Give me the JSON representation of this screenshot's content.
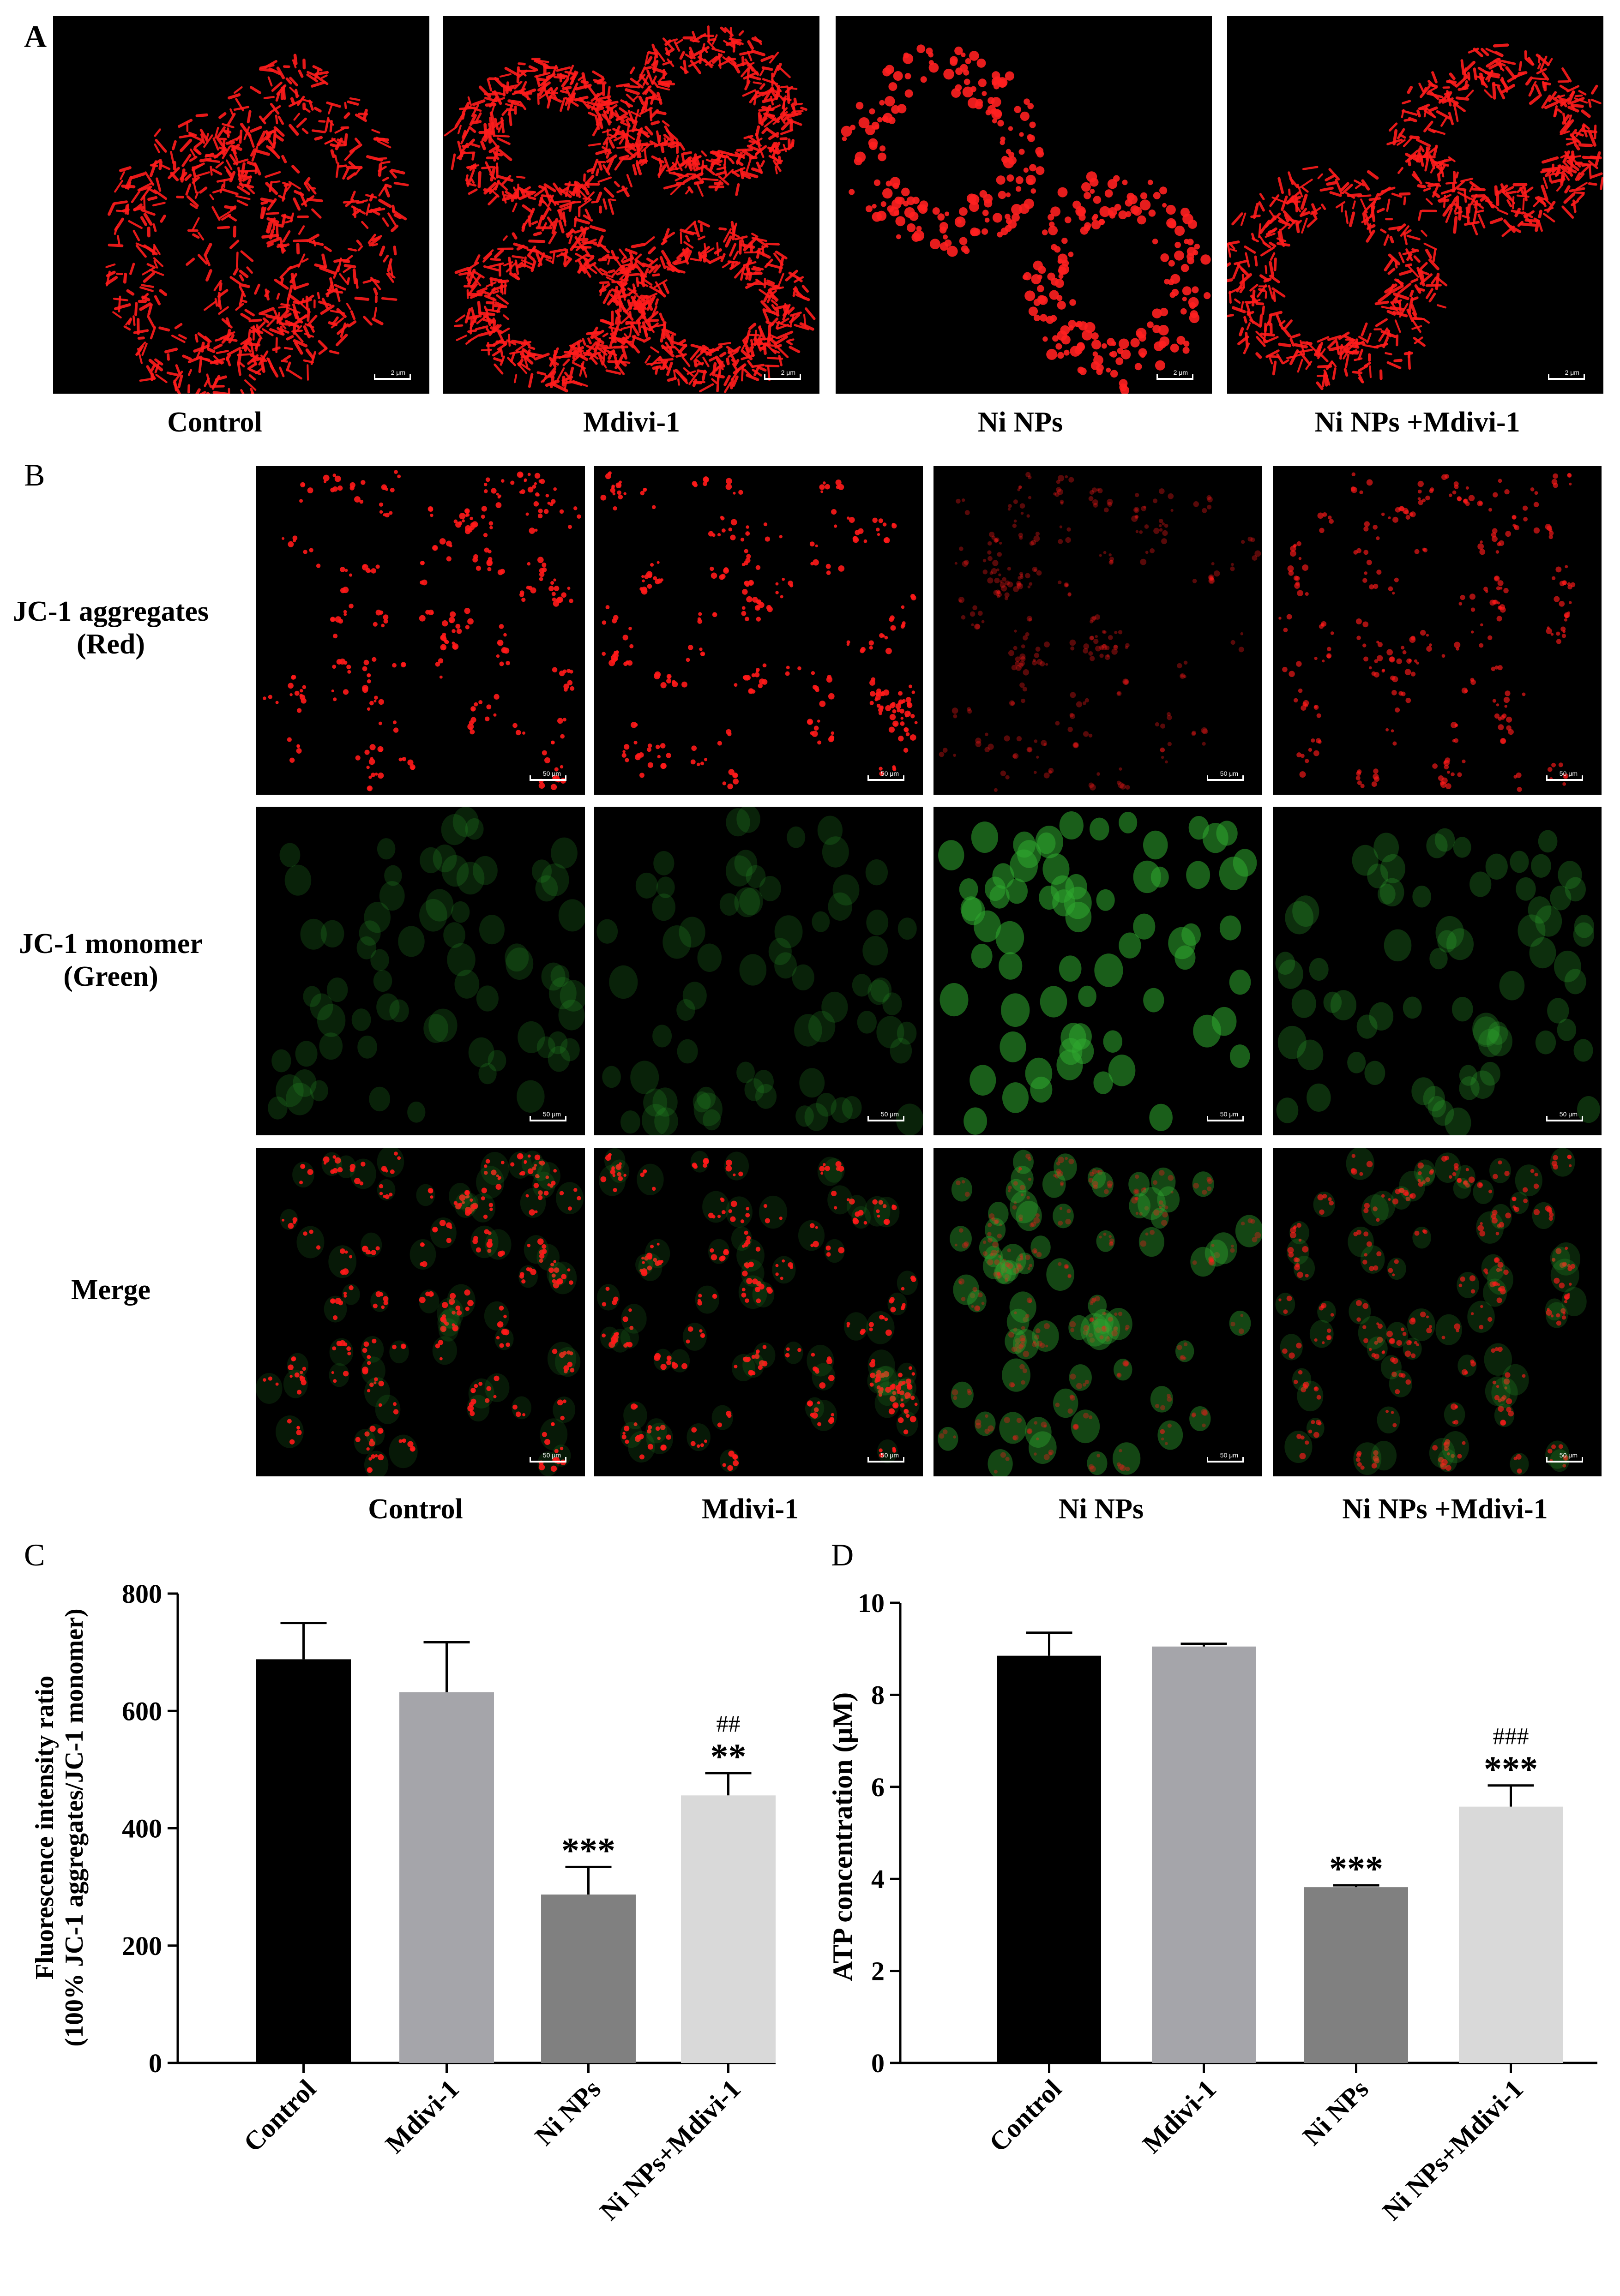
{
  "panel_labels": {
    "a": "A",
    "b": "B",
    "c": "C",
    "d": "D"
  },
  "groups": [
    "Control",
    "Mdivi-1",
    "Ni NPs",
    "Ni NPs +Mdivi-1"
  ],
  "panel_a": {
    "scale_bar": "2 μm",
    "images": [
      {
        "group": "Control",
        "fluorescence": "red",
        "cell_count": 2,
        "pattern": "filamentous"
      },
      {
        "group": "Mdivi-1",
        "fluorescence": "red",
        "cell_count": 4,
        "pattern": "elongated network"
      },
      {
        "group": "Ni NPs",
        "fluorescence": "red",
        "cell_count": 2,
        "pattern": "fragmented punctate"
      },
      {
        "group": "Ni NPs +Mdivi-1",
        "fluorescence": "red",
        "cell_count": 2,
        "pattern": "filamentous"
      }
    ]
  },
  "panel_b": {
    "scale_bar": "50 μm",
    "rows": [
      {
        "label_line1": "JC-1 aggregates",
        "label_line2": "(Red)",
        "channel": "red"
      },
      {
        "label_line1": "JC-1 monomer",
        "label_line2": "(Green)",
        "channel": "green"
      },
      {
        "label_line1": "Merge",
        "label_line2": "",
        "channel": "merge"
      }
    ],
    "red_intensity": [
      0.9,
      0.9,
      0.35,
      0.65
    ],
    "green_intensity": [
      0.25,
      0.25,
      0.7,
      0.35
    ],
    "colors": {
      "red": "#ff1a1a",
      "green": "#2fa82f"
    }
  },
  "chart_data": [
    {
      "type": "bar",
      "panel": "C",
      "categories": [
        "Control",
        "Mdivi-1",
        "Ni NPs",
        "Ni NPs+Mdivi-1"
      ],
      "values": [
        688,
        632,
        287,
        456
      ],
      "errors": [
        62,
        85,
        47,
        38
      ],
      "annotations": [
        {
          "category": "Ni NPs",
          "lines": [
            "***"
          ]
        },
        {
          "category": "Ni NPs+Mdivi-1",
          "lines": [
            "##",
            "**"
          ]
        }
      ],
      "ylabel_line1": "Fluorescence intensity ratio",
      "ylabel_line2": "(100% JC-1 aggregates/JC-1 monomer)",
      "ylim": [
        0,
        800
      ],
      "yticks": [
        0,
        200,
        400,
        600,
        800
      ],
      "colors": [
        "#000000",
        "#a5a5aa",
        "#808080",
        "#d9d9d9"
      ]
    },
    {
      "type": "bar",
      "panel": "D",
      "categories": [
        "Control",
        "Mdivi-1",
        "Ni NPs",
        "Ni NPs+Mdivi-1"
      ],
      "values": [
        8.85,
        9.05,
        3.82,
        5.57
      ],
      "errors": [
        0.5,
        0.06,
        0.04,
        0.46
      ],
      "annotations": [
        {
          "category": "Ni NPs",
          "lines": [
            "***"
          ]
        },
        {
          "category": "Ni NPs+Mdivi-1",
          "lines": [
            "###",
            "***"
          ]
        }
      ],
      "ylabel": "ATP concentration (μM)",
      "ylim": [
        0,
        10
      ],
      "yticks": [
        0,
        2,
        4,
        6,
        8,
        10
      ],
      "colors": [
        "#000000",
        "#a5a5aa",
        "#808080",
        "#d9d9d9"
      ]
    }
  ]
}
